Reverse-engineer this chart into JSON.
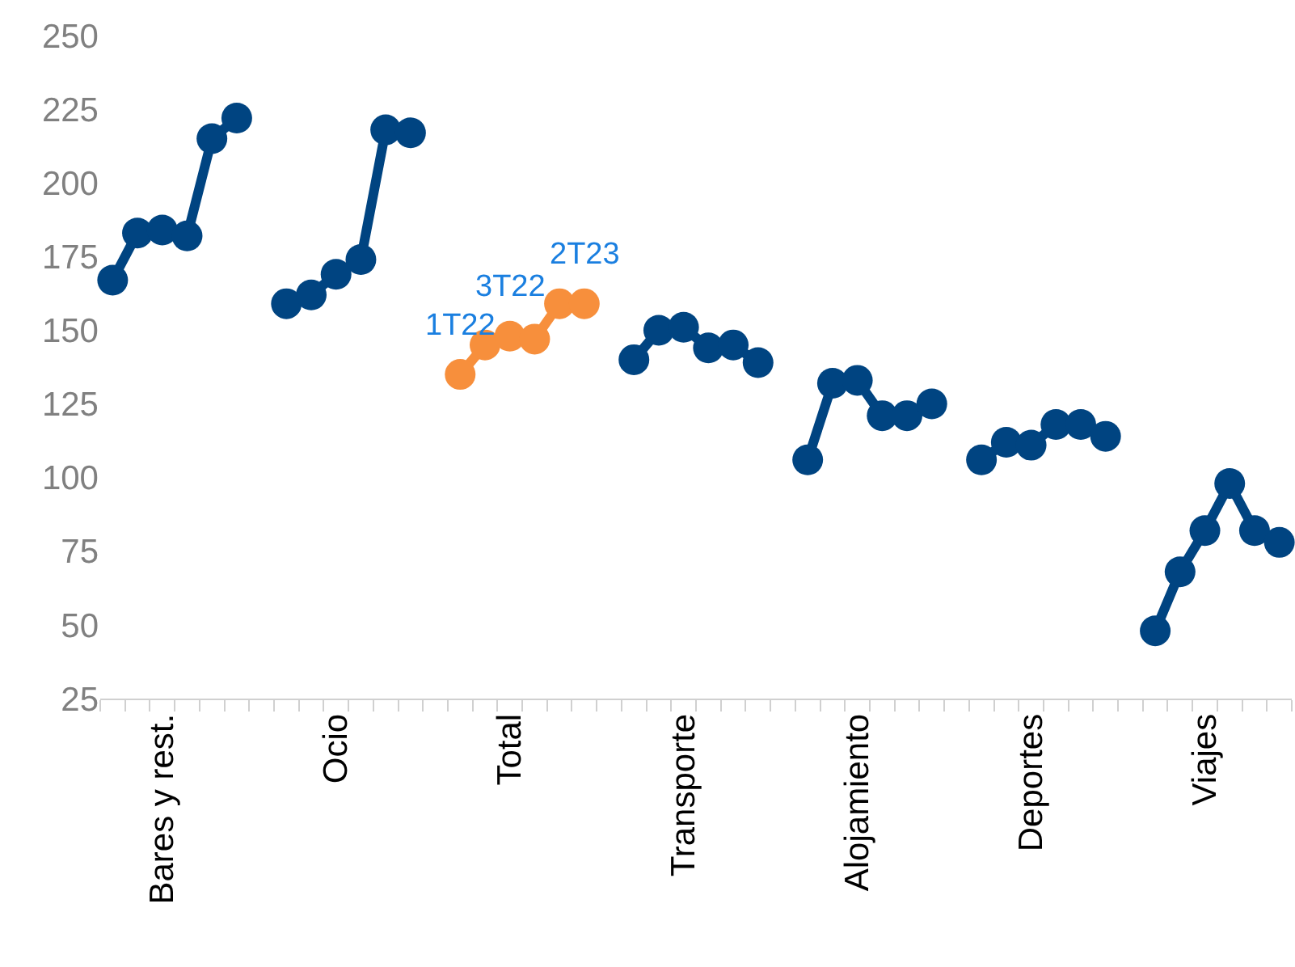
{
  "chart_data": {
    "type": "line",
    "marker": "circle",
    "line_style": "solid",
    "categories": [
      null,
      null,
      "Bares y rest.",
      null,
      null,
      null,
      null,
      null,
      null,
      "Ocio",
      null,
      null,
      null,
      null,
      null,
      null,
      "Total",
      null,
      null,
      null,
      null,
      null,
      null,
      "Transporte",
      null,
      null,
      null,
      null,
      null,
      null,
      "Alojamiento",
      null,
      null,
      null,
      null,
      null,
      null,
      "Deportes",
      null,
      null,
      null,
      null,
      null,
      null,
      "Viajes",
      null,
      null,
      null
    ],
    "ylim": [
      25,
      250
    ],
    "yticks": [
      25,
      50,
      75,
      100,
      125,
      150,
      175,
      200,
      225,
      250
    ],
    "annotations": [
      {
        "text": "1T22",
        "y": 135
      },
      {
        "text": "3T22",
        "y": 148
      },
      {
        "text": "2T23",
        "y": 159
      }
    ],
    "series": [
      {
        "color": "#004481",
        "values": [
          167,
          183,
          184,
          182,
          215,
          222,
          null,
          159,
          162,
          169,
          174,
          218,
          217,
          null,
          null,
          null,
          null,
          null,
          null,
          null,
          null,
          140,
          150,
          151,
          144,
          145,
          139,
          null,
          106,
          132,
          133,
          121,
          121,
          125,
          null,
          106,
          112,
          111,
          118,
          118,
          114,
          null,
          48,
          68,
          82,
          98,
          82,
          78
        ]
      },
      {
        "color": "#f78f3c",
        "values": [
          null,
          null,
          null,
          null,
          null,
          null,
          null,
          null,
          null,
          null,
          null,
          null,
          null,
          null,
          135,
          145,
          148,
          147,
          159,
          159,
          null,
          null,
          null,
          null,
          null,
          null,
          null,
          null,
          null,
          null,
          null,
          null,
          null,
          null,
          null,
          null,
          null,
          null,
          null,
          null,
          null,
          null,
          null,
          null,
          null,
          null,
          null,
          null
        ]
      }
    ]
  }
}
